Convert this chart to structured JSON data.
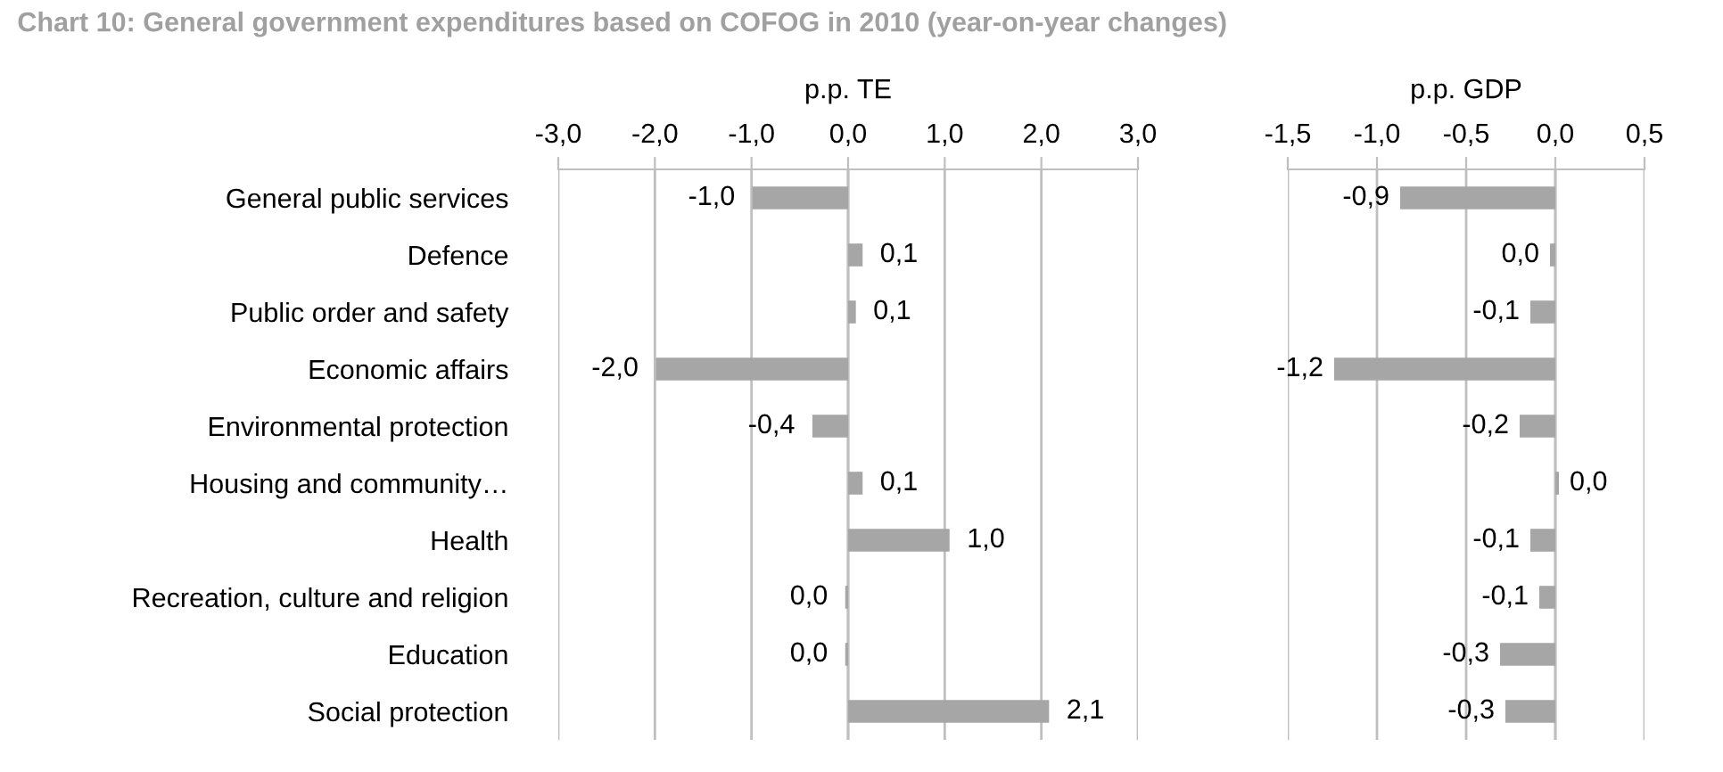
{
  "chart_data": [
    {
      "type": "bar",
      "orientation": "horizontal",
      "title": "Chart 10: General government expenditures based on COFOG in 2010 (year-on-year changes)",
      "xlabel": "p.p. TE",
      "categories": [
        "General public services",
        "Defence",
        "Public order and safety",
        "Economic affairs",
        "Environmental protection",
        "Housing and community…",
        "Health",
        "Recreation, culture and religion",
        "Education",
        "Social protection"
      ],
      "values": [
        -0.99,
        0.15,
        0.08,
        -1.99,
        -0.37,
        0.15,
        1.05,
        -0.03,
        -0.03,
        2.08
      ],
      "value_labels": [
        "-1,0",
        "0,1",
        "0,1",
        "-2,0",
        "-0,4",
        "0,1",
        "1,0",
        "0,0",
        "0,0",
        "2,1"
      ],
      "color": "#a6a6a6",
      "xlim": [
        -3,
        3
      ],
      "xticks": [
        {
          "value": -3,
          "label": "-3,0"
        },
        {
          "value": -2,
          "label": "-2,0"
        },
        {
          "value": -1,
          "label": "-1,0"
        },
        {
          "value": 0,
          "label": "0,0"
        },
        {
          "value": 1,
          "label": "1,0"
        },
        {
          "value": 2,
          "label": "2,0"
        },
        {
          "value": 3,
          "label": "3,0"
        }
      ],
      "grid": "x"
    },
    {
      "type": "bar",
      "orientation": "horizontal",
      "xlabel": "p.p. GDP",
      "categories": [
        null,
        null,
        null,
        null,
        null,
        null,
        null,
        null,
        null,
        null
      ],
      "values": [
        -0.87,
        -0.03,
        -0.14,
        -1.24,
        -0.2,
        0.02,
        -0.14,
        -0.09,
        -0.31,
        -0.28
      ],
      "value_labels": [
        "-0,9",
        "0,0",
        "-0,1",
        "-1,2",
        "-0,2",
        "0,0",
        "-0,1",
        "-0,1",
        "-0,3",
        "-0,3"
      ],
      "color": "#a6a6a6",
      "xlim": [
        -1.5,
        0.5
      ],
      "xticks": [
        {
          "value": -1.5,
          "label": "-1,5"
        },
        {
          "value": -1,
          "label": "-1,0"
        },
        {
          "value": -0.5,
          "label": "-0,5"
        },
        {
          "value": 0,
          "label": "0,0"
        },
        {
          "value": 0.5,
          "label": "0,5"
        }
      ],
      "grid": "x",
      "tick_labels": "x"
    }
  ]
}
